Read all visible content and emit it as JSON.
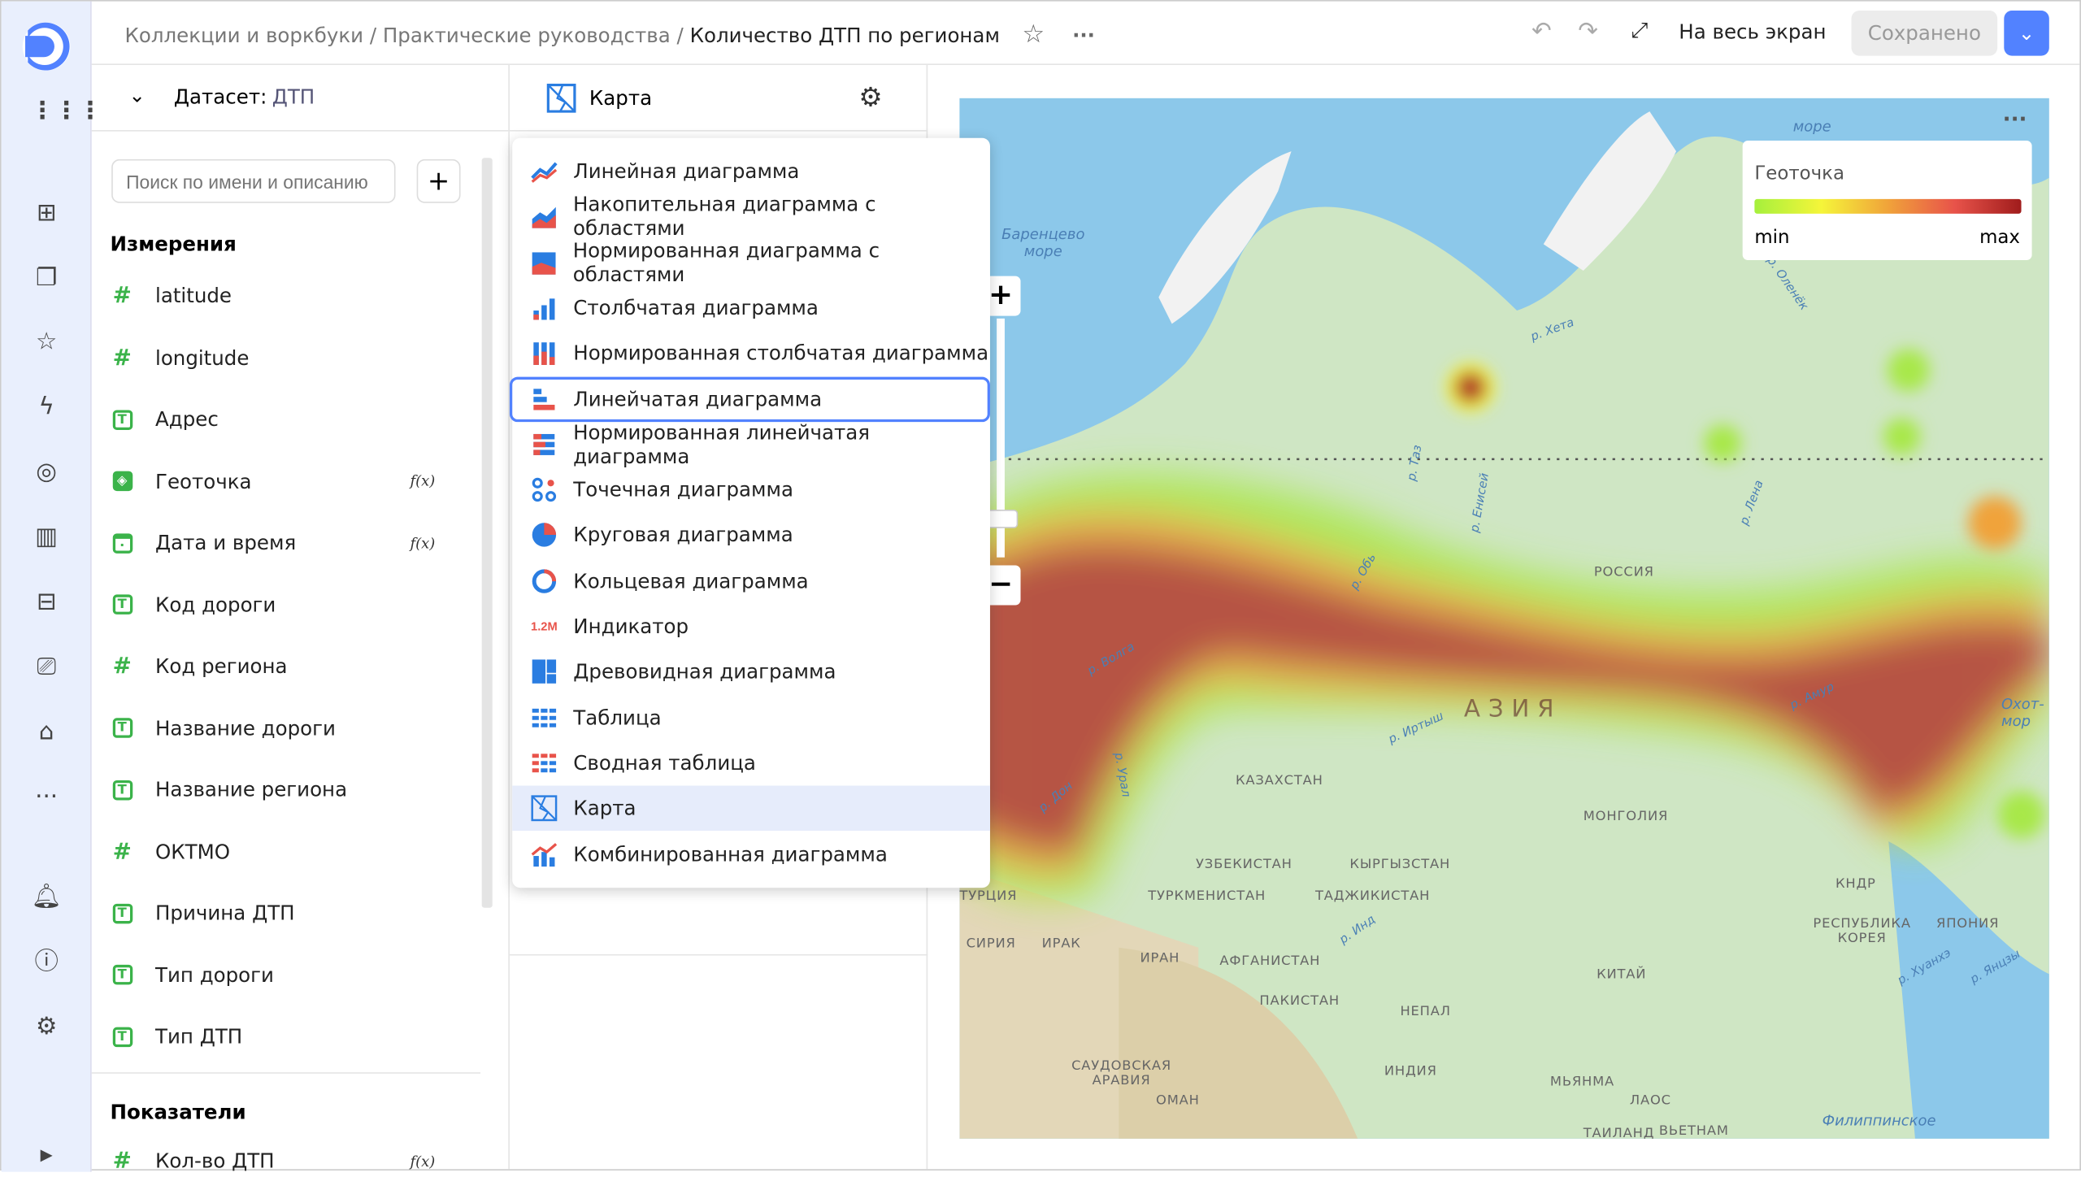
{
  "nav": {
    "icons": [
      "logo",
      "apps-grid-icon",
      "dashboards-icon",
      "collections-icon",
      "favorites-icon",
      "connections-icon",
      "datasets-icon",
      "charts-icon",
      "reports-icon",
      "monitoring-icon",
      "folder-icon",
      "more-icon",
      "bell-icon",
      "help-icon",
      "settings-icon",
      "expand-icon"
    ]
  },
  "header": {
    "breadcrumbs": [
      "Коллекции и воркбуки",
      "Практические руководства"
    ],
    "title": "Количество ДТП по регионам",
    "fullscreen": "На весь экран",
    "saved": "Сохранено",
    "accent": "#5282ff"
  },
  "dataset": {
    "label": "Датасет:",
    "name": "ДТП",
    "search_placeholder": "Поиск по имени и описанию",
    "dimensions_title": "Измерения",
    "dimensions": [
      {
        "name": "latitude",
        "type": "number"
      },
      {
        "name": "longitude",
        "type": "number"
      },
      {
        "name": "Адрес",
        "type": "string"
      },
      {
        "name": "Геоточка",
        "type": "geo",
        "fx": "f(x)"
      },
      {
        "name": "Дата и время",
        "type": "date",
        "fx": "f(x)"
      },
      {
        "name": "Код дороги",
        "type": "string"
      },
      {
        "name": "Код региона",
        "type": "number"
      },
      {
        "name": "Название дороги",
        "type": "string"
      },
      {
        "name": "Название региона",
        "type": "string"
      },
      {
        "name": "ОКТМО",
        "type": "number"
      },
      {
        "name": "Причина ДТП",
        "type": "string"
      },
      {
        "name": "Тип дороги",
        "type": "string"
      },
      {
        "name": "Тип ДТП",
        "type": "string"
      }
    ],
    "measures_title": "Показатели",
    "measures": [
      {
        "name": "Кол-во ДТП",
        "type": "number",
        "fx": "f(x)"
      }
    ]
  },
  "viz": {
    "selected": "Карта",
    "menu": [
      "Линейная диаграмма",
      "Накопительная диаграмма с областями",
      "Нормированная диаграмма с областями",
      "Столбчатая диаграмма",
      "Нормированная столбчатая диаграмма",
      "Линейчатая диаграмма",
      "Нормированная линейчатая диаграмма",
      "Точечная диаграмма",
      "Круговая диаграмма",
      "Кольцевая диаграмма",
      "Индикатор",
      "Древовидная диаграмма",
      "Таблица",
      "Сводная таблица",
      "Карта",
      "Комбинированная диаграмма"
    ],
    "hovered": "Линейчатая диаграмма",
    "indicator_glyph": "1.2M"
  },
  "map": {
    "legend": {
      "title": "Геоточка",
      "min": "min",
      "max": "max",
      "colors": [
        "#a5f03c",
        "#f5f53a",
        "#f0a33a",
        "#e8534a",
        "#a01c1c"
      ]
    },
    "seas": [
      "Баренцево море",
      "море",
      "Филиппинское",
      "Охот- мор"
    ],
    "rivers": [
      "р. Хета",
      "р. Оленёк",
      "р. Лена",
      "р. Енисей",
      "р. Таз",
      "р. Обь",
      "р. Волга",
      "р. Дон",
      "р. Урал",
      "р. Иртыш",
      "р. Амур",
      "р. Хуанхэ",
      "р. Янцзы",
      "р. Инд"
    ],
    "countries": [
      "РОССИЯ",
      "АЗИЯ",
      "КАЗАХСТАН",
      "МОНГОЛИЯ",
      "УЗБЕКИСТАН",
      "КЫРГЫЗСТАН",
      "ТУРКМЕНИСТАН",
      "ТАДЖИКИСТАН",
      "ТУРЦИЯ",
      "СИРИЯ",
      "ИРАК",
      "ИРАН",
      "АФГАНИСТАН",
      "ПАКИСТАН",
      "НЕПАЛ",
      "ИНДИЯ",
      "КИТАЙ",
      "САУДОВСКАЯ АРАВИЯ",
      "ОМАН",
      "МЬЯНМА",
      "ЛАОС",
      "ТАИЛАНД",
      "ВЬЕТНАМ",
      "КНДР",
      "РЕСПУБЛИКА КОРЕЯ",
      "ЯПОНИЯ"
    ],
    "zoom_in": "+",
    "zoom_out": "−"
  }
}
